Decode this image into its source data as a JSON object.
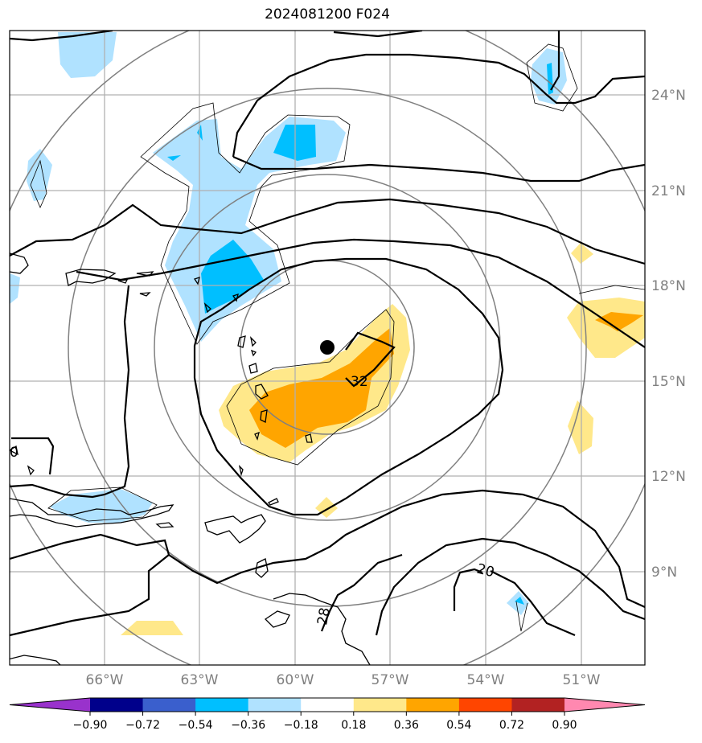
{
  "title": "2024081200 F024",
  "lat_labels": [
    "24°N",
    "21°N",
    "18°N",
    "15°N",
    "12°N",
    "9°N"
  ],
  "lon_labels": [
    "66°W",
    "63°W",
    "60°W",
    "57°W",
    "54°W",
    "51°W"
  ],
  "contour_labels": [
    "32",
    "20",
    "28"
  ],
  "colorbar": {
    "ticks": [
      "−0.90",
      "−0.72",
      "−0.54",
      "−0.36",
      "−0.18",
      "0.18",
      "0.36",
      "0.54",
      "0.72",
      "0.90"
    ],
    "colors": [
      "#9932cc",
      "#00008b",
      "#3a5fcd",
      "#00bfff",
      "#b0e2ff",
      "#ffffff",
      "#ffe88a",
      "#ffa500",
      "#ff4500",
      "#b22222",
      "#ff88b0"
    ]
  },
  "colors": {
    "grid": "#b0b0b0",
    "range_rings": "#808080",
    "contours": "#000000",
    "center_marker": "#000000"
  }
}
